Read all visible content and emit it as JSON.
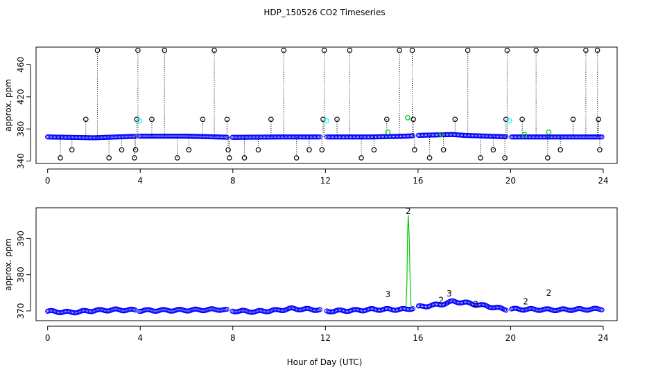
{
  "title": "HDP_150526  CO2 Timeseries",
  "xlabel": "Hour of Day (UTC)",
  "colors": {
    "raw": "#000000",
    "cal": "#00ffff",
    "avg": "#0000ff",
    "std": "#00cc00"
  },
  "chart_data": [
    {
      "type": "scatter",
      "ylabel": "approx. ppm",
      "xlim": [
        -0.5,
        24.6
      ],
      "ylim": [
        337,
        482
      ],
      "xticks": [
        0,
        4,
        8,
        12,
        16,
        20,
        24
      ],
      "yticks": [
        340,
        380,
        420,
        460
      ],
      "grid": false,
      "baseline": [
        [
          0,
          370
        ],
        [
          2,
          369
        ],
        [
          4,
          371
        ],
        [
          6,
          371
        ],
        [
          8,
          369.5
        ],
        [
          10,
          370
        ],
        [
          12,
          370
        ],
        [
          14,
          370
        ],
        [
          15.5,
          371
        ],
        [
          16,
          372
        ],
        [
          17.5,
          373
        ],
        [
          18,
          372
        ],
        [
          19,
          371
        ],
        [
          20,
          370
        ],
        [
          22,
          370
        ],
        [
          24,
          370
        ]
      ],
      "gaps": [
        [
          3.82,
          3.95
        ],
        [
          7.75,
          7.95
        ],
        [
          11.82,
          12.02
        ],
        [
          15.8,
          16.0
        ],
        [
          19.8,
          20.0
        ]
      ],
      "series": [
        {
          "marker": "circle",
          "color": "#000000",
          "x": [
            0.55,
            1.05,
            1.65,
            2.15,
            2.65,
            3.2,
            3.75,
            3.8,
            3.85,
            3.9,
            4.5,
            5.05,
            5.6,
            6.1,
            6.7,
            7.2,
            7.75,
            7.8,
            7.85,
            8.5,
            9.1,
            9.65,
            10.2,
            10.75,
            11.3,
            11.85,
            11.9,
            11.95,
            12.5,
            13.05,
            13.55,
            14.1,
            14.65,
            15.2,
            15.75,
            15.8,
            15.85,
            16.5,
            17.1,
            17.6,
            18.15,
            18.7,
            19.25,
            19.75,
            19.8,
            19.85,
            20.5,
            21.1,
            21.6,
            22.15,
            22.7,
            23.25,
            23.75,
            23.8,
            23.85
          ],
          "y": [
            344,
            354,
            392,
            478,
            344,
            354,
            344,
            354,
            392,
            478,
            392,
            478,
            344,
            354,
            392,
            478,
            392,
            354,
            344,
            344,
            354,
            392,
            478,
            344,
            354,
            354,
            392,
            478,
            392,
            478,
            344,
            354,
            392,
            478,
            478,
            392,
            354,
            344,
            354,
            392,
            478,
            344,
            354,
            344,
            392,
            478,
            392,
            478,
            344,
            354,
            392,
            478,
            478,
            392,
            354
          ]
        },
        {
          "marker": "circle",
          "color": "#00ffff",
          "x": [
            3.97,
            12.05,
            15.55,
            19.95
          ],
          "y": [
            390,
            390,
            394,
            390
          ]
        },
        {
          "marker": "circle",
          "color": "#00cc00",
          "x": [
            14.7,
            15.55,
            17.0,
            20.6,
            21.65
          ],
          "y": [
            376,
            394,
            373,
            373,
            376
          ]
        }
      ]
    },
    {
      "type": "scatter",
      "ylabel": "approx. ppm",
      "xlim": [
        -0.5,
        24.6
      ],
      "ylim": [
        367.3,
        398.5
      ],
      "xticks": [
        0,
        4,
        8,
        12,
        16,
        20,
        24
      ],
      "yticks": [
        370,
        380,
        390
      ],
      "ytick_labels": [
        "370",
        "380",
        "390"
      ],
      "grid": false,
      "baseline": [
        [
          0,
          369.9
        ],
        [
          1,
          369.6
        ],
        [
          2,
          370.1
        ],
        [
          3,
          370.3
        ],
        [
          3.8,
          370.2
        ],
        [
          4,
          370.1
        ],
        [
          6,
          370.2
        ],
        [
          7.5,
          370.4
        ],
        [
          8,
          370
        ],
        [
          9,
          369.8
        ],
        [
          10,
          370.2
        ],
        [
          10.5,
          370.6
        ],
        [
          11.8,
          370.3
        ],
        [
          12,
          369.9
        ],
        [
          13.5,
          370.2
        ],
        [
          14,
          370.4
        ],
        [
          15.5,
          370.4
        ],
        [
          16,
          371.1
        ],
        [
          17,
          371.8
        ],
        [
          17.5,
          372.6
        ],
        [
          18,
          372.3
        ],
        [
          19,
          371.3
        ],
        [
          19.8,
          370.4
        ],
        [
          20,
          370.5
        ],
        [
          22,
          370.3
        ],
        [
          24,
          370.5
        ]
      ],
      "gaps": [
        [
          3.82,
          3.95
        ],
        [
          7.75,
          7.95
        ],
        [
          11.82,
          12.02
        ],
        [
          15.8,
          16.0
        ],
        [
          19.8,
          20.0
        ]
      ],
      "series": [
        {
          "marker": "circle",
          "color": "#0000ff",
          "x": [],
          "y": []
        },
        {
          "marker": "text",
          "color": "#00cc00",
          "x": [
            15.58,
            21.65,
            20.65,
            17.0,
            18.5
          ],
          "y": [
            396.8,
            374.2,
            371.8,
            372.2,
            371.0
          ],
          "labels": [
            "2",
            "2",
            "2",
            "2",
            "2"
          ]
        },
        {
          "marker": "text",
          "color": "#0000cc",
          "x": [
            14.7,
            17.35
          ],
          "y": [
            373.8,
            374.0
          ],
          "labels": [
            "3",
            "3"
          ]
        }
      ],
      "spike": {
        "x": [
          15.48,
          15.52,
          15.55,
          15.58,
          15.62,
          15.66,
          15.7
        ],
        "y": [
          371,
          378,
          392,
          396.5,
          390,
          378,
          371
        ]
      }
    }
  ]
}
